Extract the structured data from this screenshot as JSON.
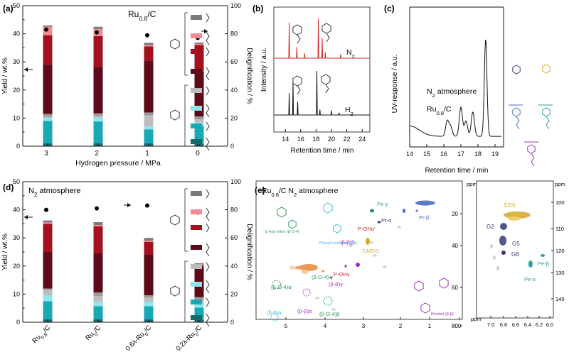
{
  "colors": {
    "c1": "#136a6f",
    "c2": "#19a9b6",
    "c3": "#8fe6ee",
    "c4": "#bdbdbd",
    "c5": "#5e0a19",
    "c6": "#a3111f",
    "c7": "#f28b91",
    "c8": "#7b7b7b",
    "red": "#d42b27",
    "black": "#111111",
    "orange": "#e69a52",
    "gold": "#d6ad2b",
    "green": "#2e9b5b",
    "purple": "#9b33bf",
    "navy": "#323a78",
    "blue": "#4a6fc6",
    "teal": "#2aa19a",
    "grey": "#bdbdbd"
  },
  "chart_data": [
    {
      "panel": "(a)",
      "type": "bar",
      "annotation": "Ru0.8/C",
      "xlabel": "Hydrogen pressure / MPa",
      "ylabel": "Yield / wt.%",
      "y2label": "Delignification / %",
      "categories": [
        "3",
        "2",
        "1",
        "0"
      ],
      "ylim": [
        0,
        50
      ],
      "y2lim": [
        0,
        100
      ],
      "yticks": [
        "0",
        "10",
        "20",
        "30",
        "40",
        "50"
      ],
      "y2ticks": [
        "0",
        "20",
        "40",
        "60",
        "80",
        "100"
      ],
      "stacked": true,
      "series": [
        {
          "values": [
            1.0,
            1.0,
            1.0,
            1.0
          ]
        },
        {
          "values": [
            8.0,
            7.8,
            5.0,
            6.2
          ]
        },
        {
          "values": [
            1.0,
            1.4,
            1.0,
            1.2
          ]
        },
        {
          "values": [
            0.5,
            0.5,
            4.0,
            1.2
          ]
        },
        {
          "values": [
            1.0,
            1.0,
            1.0,
            1.0
          ]
        },
        {
          "values": [
            17.5,
            16.5,
            18.5,
            16.0
          ]
        },
        {
          "values": [
            10.5,
            11.0,
            5.0,
            9.4
          ]
        },
        {
          "values": [
            3.0,
            2.5,
            0.5,
            0.4
          ]
        },
        {
          "values": [
            0.5,
            0.8,
            0.8,
            0.5
          ]
        }
      ],
      "delignification": [
        83,
        81,
        79,
        77
      ]
    },
    {
      "panel": "(b)",
      "type": "line",
      "xlabel": "Retention time / min",
      "ylabel": "Intensity / a.u.",
      "xlim": [
        12.5,
        25
      ],
      "xticks": [
        "14",
        "16",
        "18",
        "20",
        "22",
        "24"
      ],
      "series": [
        {
          "name": "N₂",
          "peaks": [
            [
              14.5,
              0.9
            ],
            [
              15.5,
              0.28
            ],
            [
              16.5,
              0.12
            ],
            [
              18.3,
              1.0
            ],
            [
              18.8,
              0.5
            ],
            [
              19.2,
              0.15
            ],
            [
              21.2,
              0.1
            ]
          ]
        },
        {
          "name": "H₂",
          "peaks": [
            [
              14.5,
              0.5
            ],
            [
              15.0,
              0.75
            ],
            [
              15.6,
              0.3
            ],
            [
              18.1,
              1.0
            ],
            [
              18.5,
              0.12
            ],
            [
              20.0,
              0.1
            ],
            [
              21.0,
              0.05
            ]
          ]
        }
      ]
    },
    {
      "panel": "(c)",
      "type": "line",
      "xlabel": "Retention time / min",
      "ylabel": "UV-response / a.u.",
      "xlim": [
        14,
        19.5
      ],
      "xticks": [
        "14",
        "15",
        "16",
        "17",
        "18",
        "19"
      ],
      "annotations": [
        "N₂ atmosphere",
        "Ru0.8/C"
      ]
    },
    {
      "panel": "(d)",
      "type": "bar",
      "annotation": "N₂ atmosphere",
      "ylabel": "Yield / wt.%",
      "y2label": "Delignification / %",
      "categories": [
        "Ru0.8/C",
        "Ru0/C",
        "0.6λ-Ru0/C",
        "0.2λ-Ru0/C"
      ],
      "ylim": [
        0,
        50
      ],
      "y2lim": [
        0,
        100
      ],
      "yticks": [
        "0",
        "10",
        "20",
        "30",
        "40",
        "50"
      ],
      "y2ticks": [
        "0",
        "20",
        "40",
        "60",
        "80",
        "100"
      ],
      "stacked": true,
      "series": [
        {
          "values": [
            1.0,
            1.0,
            1.0,
            1.0
          ]
        },
        {
          "values": [
            6.5,
            4.7,
            4.7,
            4.2
          ]
        },
        {
          "values": [
            2.0,
            1.6,
            1.6,
            1.4
          ]
        },
        {
          "values": [
            2.0,
            2.0,
            1.5,
            1.5
          ]
        },
        {
          "values": [
            0.5,
            1.3,
            0.8,
            0.8
          ]
        },
        {
          "values": [
            13.0,
            14.0,
            14.5,
            11.0
          ]
        },
        {
          "values": [
            10.0,
            9.5,
            4.5,
            0.3
          ]
        },
        {
          "values": [
            0.5,
            0.5,
            0.4,
            0.3
          ]
        },
        {
          "values": [
            0.7,
            1.0,
            1.0,
            0.5
          ]
        }
      ],
      "delignification": [
        80,
        81,
        83,
        78
      ]
    },
    {
      "panel": "(e)",
      "type": "scatter",
      "annotations": [
        "Ru0.8/C  N₂ atmosphere"
      ],
      "left_xlim": [
        6,
        0
      ],
      "left_ylim": [
        0,
        90
      ],
      "left_xticks": [
        "5",
        "4",
        "3",
        "2",
        "1",
        "0"
      ],
      "left_yticks": [
        "20",
        "40",
        "60",
        "80"
      ],
      "right_xticks": [
        "7.0",
        "6.8",
        "6.6",
        "6.4",
        "6.2",
        "6.0"
      ],
      "right_yticks": [
        "100",
        "110",
        "120",
        "130",
        "140"
      ],
      "axis_unit": "ppm",
      "labels": [
        "Pe-γ",
        "Pr-γ",
        "Pr-β",
        "Pr-α",
        "P-OHα'",
        "DMSO",
        "(β-β)β",
        "MeO",
        "(β-O-4) γ",
        "P-OHγ",
        "(β-O-4)α",
        "(β-β)α",
        "(β-β)γ",
        "(β-5)α",
        "(β-O-4)β",
        "S2/6",
        "G2",
        "G5",
        "G6",
        "Pe-β",
        "Pe-α",
        "β-Aryl ether (β-O-4)",
        "Phenylcoumaran (β-5)",
        "Resinol (β-β)"
      ]
    }
  ],
  "figure_text": {
    "panel_a": "(a)",
    "panel_b": "(b)",
    "panel_c": "(c)",
    "panel_d": "(d)",
    "panel_e": "(e)",
    "sub_08": "0.8",
    "ru": "Ru",
    "slash_c": "/C",
    "sub_0": "0",
    "point6": "0.6λ-Ru",
    "point2": "0.2λ-Ru",
    "n": "N",
    "sub_2": "2",
    "h": "H",
    "atmosphere": " atmosphere",
    "ru08c": "Ru0.8/C",
    "ppm": "ppm"
  }
}
